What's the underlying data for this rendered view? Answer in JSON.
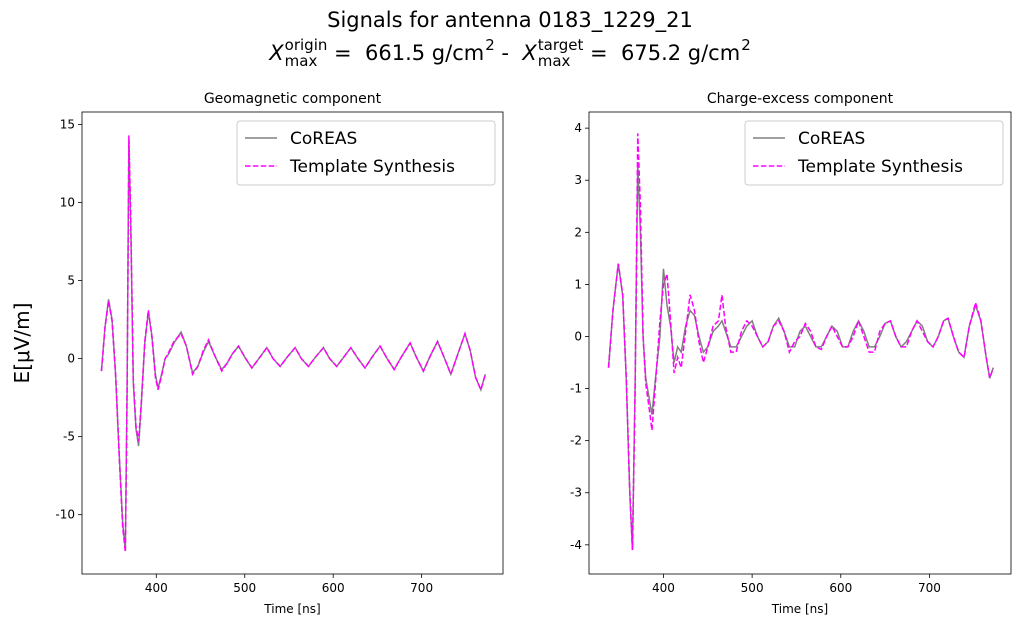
{
  "title": "Signals for antenna 0183_1229_21",
  "subtitle": [
    {
      "text": "X",
      "sub": "max",
      "sup": "origin"
    },
    {
      "text": " =  661.5 g/cm",
      "sup": "2"
    },
    {
      "text": " -  "
    },
    {
      "text": "X",
      "sub": "max",
      "sup": "target"
    },
    {
      "text": " =  675.2 g/cm",
      "sup": "2"
    }
  ],
  "chart_data": [
    {
      "type": "line",
      "title": "Geomagnetic component",
      "xlabel": "Time [ns]",
      "ylabel": "E[μV/m]",
      "xlim": [
        316,
        792
      ],
      "ylim": [
        -13.8,
        15.8
      ],
      "xticks": [
        400,
        500,
        600,
        700
      ],
      "yticks": [
        -10,
        -5,
        0,
        5,
        10,
        15
      ],
      "legend": "upper right",
      "x": [
        338,
        342,
        346,
        350,
        354,
        358,
        362,
        365,
        367,
        369,
        371,
        374,
        377,
        380,
        383,
        387,
        391,
        395,
        399,
        402,
        406,
        410,
        414,
        420,
        428,
        434,
        441,
        447,
        453,
        459,
        466,
        474,
        480,
        486,
        493,
        500,
        508,
        516,
        525,
        532,
        540,
        548,
        557,
        564,
        572,
        580,
        589,
        596,
        604,
        612,
        620,
        628,
        636,
        644,
        653,
        661,
        669,
        677,
        687,
        694,
        702,
        710,
        718,
        726,
        733,
        741,
        749,
        755,
        761,
        767,
        772
      ],
      "series": [
        {
          "name": "CoREAS",
          "color": "#808080",
          "linestyle": "solid",
          "values": [
            -0.8,
            2.0,
            3.8,
            2.5,
            -1.0,
            -6.0,
            -10.5,
            -12.3,
            -2.0,
            14.0,
            9.0,
            -1.5,
            -4.5,
            -5.6,
            -3.0,
            1.0,
            3.0,
            1.5,
            -1.0,
            -1.9,
            -1.0,
            0.0,
            0.3,
            1.0,
            1.7,
            0.8,
            -0.9,
            -0.5,
            0.4,
            1.1,
            0.2,
            -0.7,
            -0.3,
            0.3,
            0.8,
            0.1,
            -0.6,
            0.0,
            0.7,
            0.0,
            -0.5,
            0.1,
            0.7,
            0.0,
            -0.5,
            0.1,
            0.7,
            0.0,
            -0.5,
            0.1,
            0.7,
            0.0,
            -0.6,
            0.1,
            0.8,
            0.0,
            -0.7,
            0.1,
            1.0,
            0.1,
            -0.8,
            0.2,
            1.1,
            0.0,
            -1.0,
            0.3,
            1.6,
            0.5,
            -1.2,
            -2.0,
            -1.0
          ]
        },
        {
          "name": "Template Synthesis",
          "color": "#ff00ff",
          "linestyle": "dashed",
          "values": [
            -0.8,
            2.0,
            3.7,
            2.4,
            -1.1,
            -6.2,
            -10.8,
            -12.4,
            -1.8,
            14.3,
            9.2,
            -1.4,
            -4.3,
            -5.3,
            -2.8,
            1.1,
            3.1,
            1.4,
            -1.2,
            -2.0,
            -1.1,
            0.0,
            0.4,
            1.1,
            1.6,
            0.8,
            -1.0,
            -0.5,
            0.5,
            1.2,
            0.2,
            -0.8,
            -0.3,
            0.3,
            0.8,
            0.1,
            -0.6,
            0.0,
            0.7,
            0.0,
            -0.5,
            0.1,
            0.7,
            0.0,
            -0.5,
            0.1,
            0.7,
            0.0,
            -0.5,
            0.1,
            0.7,
            0.0,
            -0.6,
            0.1,
            0.8,
            0.0,
            -0.7,
            0.1,
            1.0,
            0.1,
            -0.8,
            0.2,
            1.1,
            0.0,
            -1.0,
            0.3,
            1.6,
            0.5,
            -1.2,
            -2.0,
            -1.0
          ]
        }
      ]
    },
    {
      "type": "line",
      "title": "Charge-excess component",
      "xlabel": "Time [ns]",
      "xlim": [
        316,
        792
      ],
      "ylim": [
        -4.56,
        4.31
      ],
      "xticks": [
        400,
        500,
        600,
        700
      ],
      "yticks": [
        -4,
        -3,
        -2,
        -1,
        0,
        1,
        2,
        3,
        4
      ],
      "legend": "upper right",
      "x": [
        338,
        343,
        349,
        354,
        358,
        362,
        365,
        368,
        371,
        374,
        377,
        380,
        384,
        387,
        391,
        396,
        400,
        404,
        408,
        412,
        416,
        420,
        425,
        430,
        435,
        440,
        445,
        450,
        456,
        462,
        466,
        470,
        476,
        482,
        488,
        494,
        500,
        506,
        512,
        518,
        524,
        530,
        536,
        542,
        548,
        554,
        560,
        566,
        572,
        578,
        584,
        590,
        596,
        602,
        608,
        614,
        620,
        626,
        632,
        638,
        644,
        650,
        656,
        662,
        668,
        674,
        680,
        686,
        692,
        698,
        704,
        710,
        716,
        721,
        727,
        733,
        739,
        745,
        752,
        758,
        764,
        768,
        772
      ],
      "series": [
        {
          "name": "CoREAS",
          "color": "#808080",
          "linestyle": "solid",
          "values": [
            -0.6,
            0.5,
            1.4,
            0.8,
            -0.8,
            -3.0,
            -4.1,
            -1.0,
            3.3,
            2.0,
            0.0,
            -0.8,
            -1.2,
            -1.5,
            -0.8,
            0.0,
            1.3,
            0.6,
            0.2,
            -0.5,
            -0.2,
            -0.3,
            0.2,
            0.5,
            0.4,
            0.0,
            -0.3,
            -0.2,
            0.1,
            0.2,
            0.3,
            0.1,
            -0.2,
            -0.2,
            0.0,
            0.2,
            0.3,
            0.0,
            -0.2,
            -0.1,
            0.2,
            0.35,
            0.1,
            -0.2,
            -0.2,
            0.1,
            0.2,
            0.0,
            -0.2,
            -0.2,
            0.0,
            0.2,
            0.1,
            -0.2,
            -0.2,
            0.1,
            0.3,
            0.1,
            -0.2,
            -0.2,
            0.0,
            0.25,
            0.3,
            0.0,
            -0.2,
            -0.1,
            0.1,
            0.3,
            0.2,
            -0.1,
            -0.2,
            0.0,
            0.3,
            0.35,
            0.0,
            -0.3,
            -0.4,
            0.2,
            0.6,
            0.3,
            -0.4,
            -0.8,
            -0.6
          ]
        },
        {
          "name": "Template Synthesis",
          "color": "#ff00ff",
          "linestyle": "dashed",
          "values": [
            -0.6,
            0.5,
            1.4,
            0.8,
            -0.8,
            -3.0,
            -4.1,
            -1.0,
            3.9,
            2.5,
            0.0,
            -0.9,
            -1.4,
            -1.8,
            -0.9,
            0.3,
            1.0,
            1.2,
            0.3,
            -0.7,
            -0.4,
            -0.6,
            0.1,
            0.8,
            0.5,
            -0.1,
            -0.5,
            -0.2,
            0.2,
            0.3,
            0.8,
            0.2,
            -0.3,
            -0.3,
            0.1,
            0.3,
            0.2,
            0.0,
            -0.2,
            -0.1,
            0.2,
            0.3,
            0.1,
            -0.3,
            -0.1,
            0.0,
            0.25,
            0.1,
            -0.2,
            -0.25,
            0.0,
            0.2,
            0.0,
            -0.2,
            -0.2,
            0.0,
            0.3,
            0.0,
            -0.3,
            -0.3,
            0.1,
            0.25,
            0.3,
            0.0,
            -0.2,
            -0.2,
            0.1,
            0.3,
            0.1,
            -0.1,
            -0.2,
            0.0,
            0.3,
            0.35,
            0.0,
            -0.3,
            -0.4,
            0.2,
            0.65,
            0.3,
            -0.4,
            -0.8,
            -0.6
          ]
        }
      ]
    }
  ]
}
